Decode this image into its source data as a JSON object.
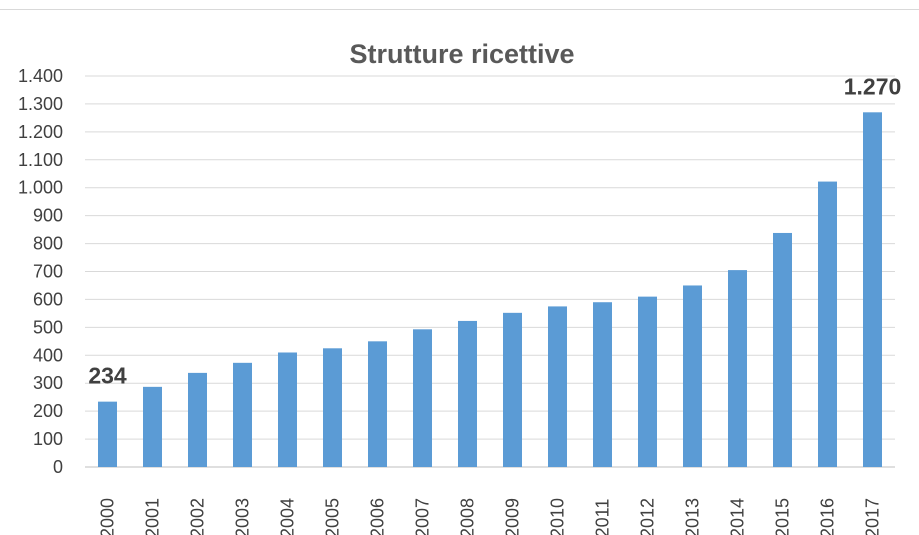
{
  "chart_data": {
    "type": "bar",
    "title": "Strutture ricettive",
    "xlabel": "",
    "ylabel": "",
    "ylim": [
      0,
      1400
    ],
    "ytick_values": [
      0,
      100,
      200,
      300,
      400,
      500,
      600,
      700,
      800,
      900,
      1000,
      1100,
      1200,
      1300,
      1400
    ],
    "ytick_labels": [
      "0",
      "100",
      "200",
      "300",
      "400",
      "500",
      "600",
      "700",
      "800",
      "900",
      "1.000",
      "1.100",
      "1.200",
      "1.300",
      "1.400"
    ],
    "categories": [
      "2000",
      "2001",
      "2002",
      "2003",
      "2004",
      "2005",
      "2006",
      "2007",
      "2008",
      "2009",
      "2010",
      "2011",
      "2012",
      "2013",
      "2014",
      "2015",
      "2016",
      "2017"
    ],
    "values": [
      234,
      287,
      337,
      373,
      410,
      425,
      450,
      493,
      523,
      552,
      575,
      590,
      610,
      650,
      705,
      838,
      1022,
      1270
    ],
    "data_labels": [
      {
        "index": 0,
        "text": "234"
      },
      {
        "index": 17,
        "text": "1.270"
      }
    ],
    "grid": true,
    "legend": "none",
    "colors": {
      "bar": "#5b9bd5",
      "grid": "#d9d9d9",
      "text": "#404040",
      "title": "#595959"
    }
  }
}
